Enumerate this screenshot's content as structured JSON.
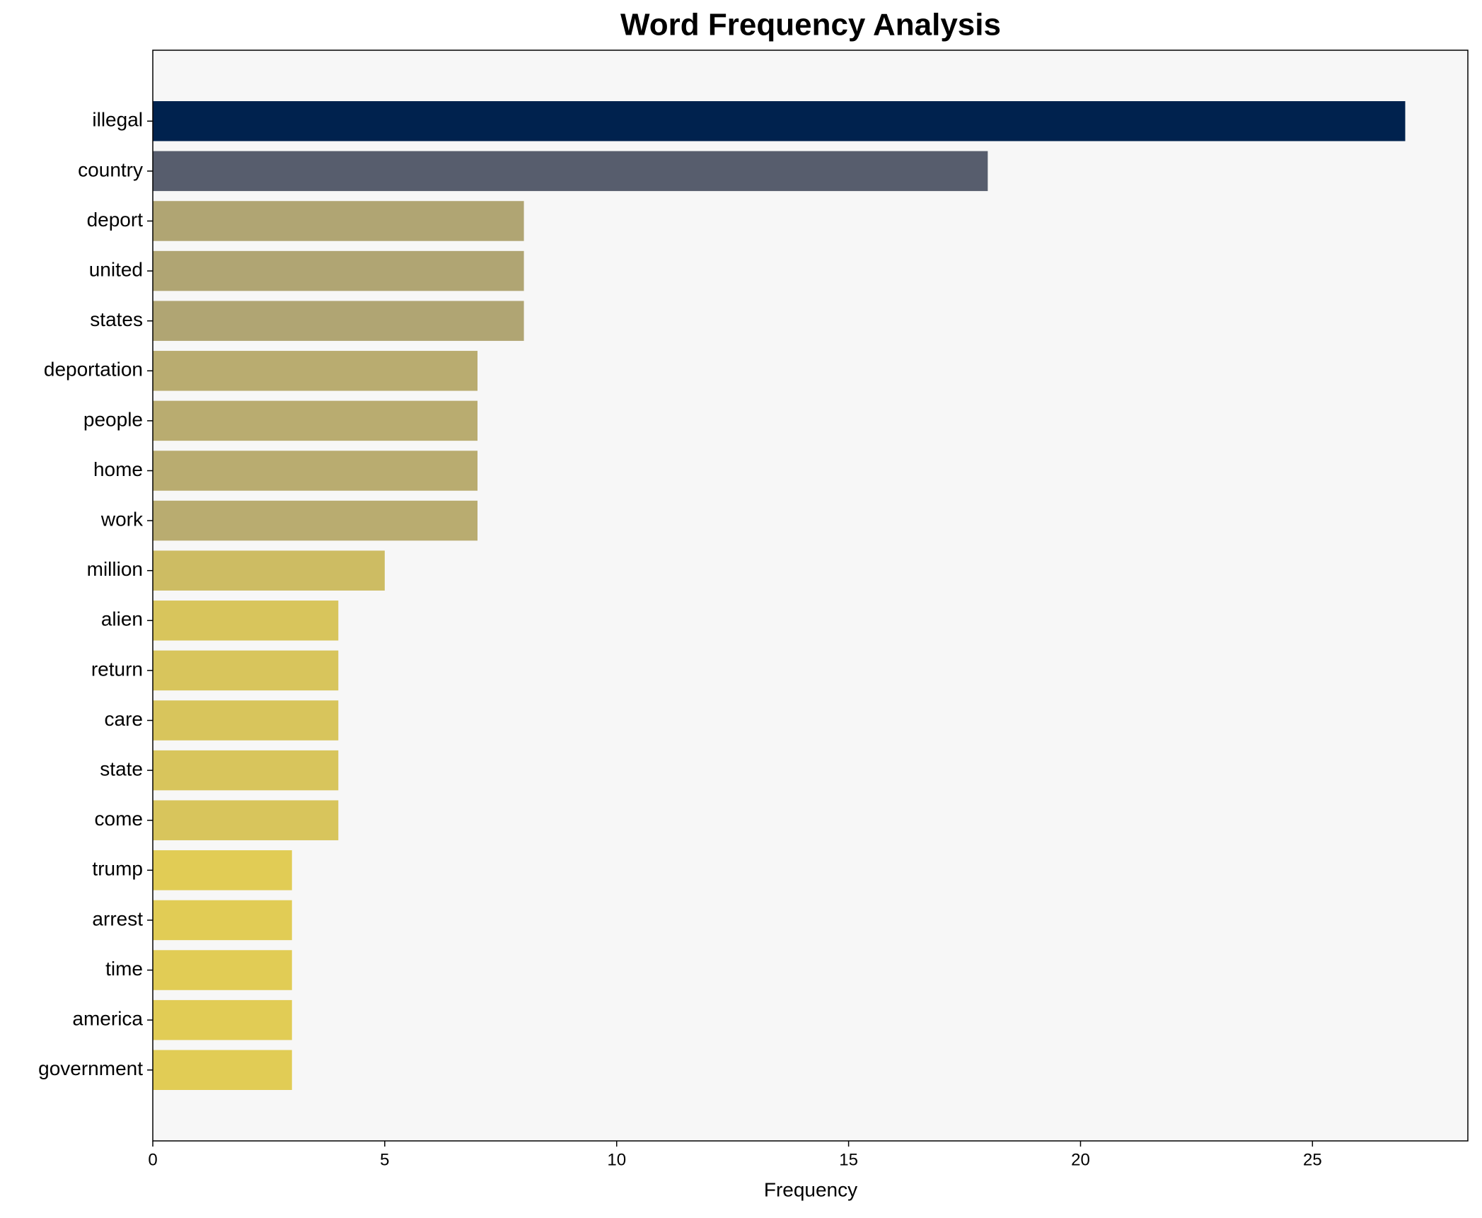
{
  "chart_data": {
    "type": "barh",
    "title": "Word Frequency Analysis",
    "x_label": "Frequency",
    "categories": [
      "illegal",
      "country",
      "deport",
      "united",
      "states",
      "deportation",
      "people",
      "home",
      "work",
      "million",
      "alien",
      "return",
      "care",
      "state",
      "come",
      "trump",
      "arrest",
      "time",
      "america",
      "government"
    ],
    "values": [
      27,
      18,
      8,
      8,
      8,
      7,
      7,
      7,
      7,
      5,
      4,
      4,
      4,
      4,
      4,
      3,
      3,
      3,
      3,
      3
    ],
    "colors": [
      "#00224e",
      "#575d6d",
      "#b0a573",
      "#b0a573",
      "#b0a573",
      "#b9ac70",
      "#b9ac70",
      "#b9ac70",
      "#b9ac70",
      "#cdbc63",
      "#d8c55c",
      "#d8c55c",
      "#d8c55c",
      "#d8c55c",
      "#d8c55c",
      "#e1cc55",
      "#e1cc55",
      "#e1cc55",
      "#e1cc55",
      "#e1cc55"
    ],
    "xlim": [
      0,
      28.35
    ],
    "xticks": [
      0,
      5,
      10,
      15,
      20,
      25
    ],
    "plot_background": "#f7f7f7"
  }
}
